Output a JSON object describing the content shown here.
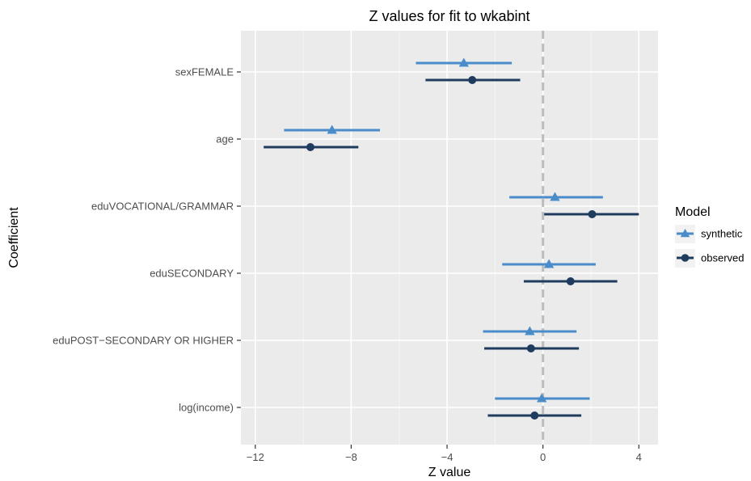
{
  "chart_data": {
    "type": "scatter",
    "title": "Z values for fit to wkabint",
    "xlabel": "Z value",
    "ylabel": "Coefficient",
    "xlim": [
      -12.6,
      4.8
    ],
    "xticks": [
      -12,
      -8,
      -4,
      0,
      4
    ],
    "xtick_labels": [
      "−12",
      "−8",
      "−4",
      "0",
      "4"
    ],
    "reference_line_x": 0,
    "categories": [
      "sexFEMALE",
      "age",
      "eduVOCATIONAL/GRAMMAR",
      "eduSECONDARY",
      "eduPOST−SECONDARY OR HIGHER",
      "log(income)"
    ],
    "legend": {
      "title": "Model",
      "position": "right",
      "entries": [
        "synthetic",
        "observed"
      ]
    },
    "series": [
      {
        "name": "synthetic",
        "color": "#4a8cc9",
        "marker": "triangle",
        "points": [
          {
            "category": "sexFEMALE",
            "z": -3.3,
            "low": -5.3,
            "high": -1.3
          },
          {
            "category": "age",
            "z": -8.8,
            "low": -10.8,
            "high": -6.8
          },
          {
            "category": "eduVOCATIONAL/GRAMMAR",
            "z": 0.5,
            "low": -1.4,
            "high": 2.5
          },
          {
            "category": "eduSECONDARY",
            "z": 0.25,
            "low": -1.7,
            "high": 2.2
          },
          {
            "category": "eduPOST−SECONDARY OR HIGHER",
            "z": -0.55,
            "low": -2.5,
            "high": 1.4
          },
          {
            "category": "log(income)",
            "z": -0.05,
            "low": -2.0,
            "high": 1.95
          }
        ]
      },
      {
        "name": "observed",
        "color": "#1f3b5e",
        "marker": "circle",
        "points": [
          {
            "category": "sexFEMALE",
            "z": -2.95,
            "low": -4.9,
            "high": -0.95
          },
          {
            "category": "age",
            "z": -9.7,
            "low": -11.65,
            "high": -7.7
          },
          {
            "category": "eduVOCATIONAL/GRAMMAR",
            "z": 2.05,
            "low": 0.05,
            "high": 4.0
          },
          {
            "category": "eduSECONDARY",
            "z": 1.15,
            "low": -0.8,
            "high": 3.1
          },
          {
            "category": "eduPOST−SECONDARY OR HIGHER",
            "z": -0.5,
            "low": -2.45,
            "high": 1.5
          },
          {
            "category": "log(income)",
            "z": -0.35,
            "low": -2.3,
            "high": 1.6
          }
        ]
      }
    ]
  }
}
